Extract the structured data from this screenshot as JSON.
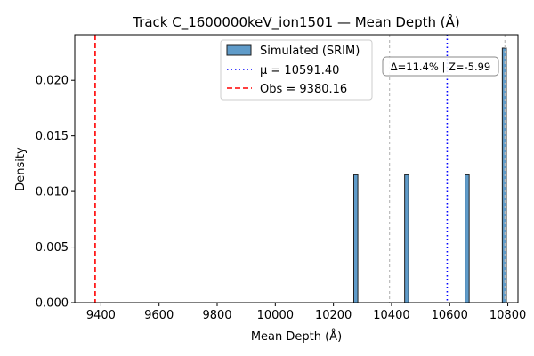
{
  "chart_data": {
    "type": "bar",
    "title": "Track C_1600000keV_ion1501 — Mean Depth (Å)",
    "xlabel": "Mean Depth (Å)",
    "ylabel": "Density",
    "xlim": [
      9310,
      10835
    ],
    "ylim": [
      0,
      0.0241
    ],
    "xticks": [
      9400,
      9600,
      9800,
      10000,
      10200,
      10400,
      10600,
      10800
    ],
    "yticks": [
      0.0,
      0.005,
      0.01,
      0.015,
      0.02
    ],
    "ytick_labels": [
      "0.000",
      "0.005",
      "0.010",
      "0.015",
      "0.020"
    ],
    "grid": false,
    "bin_width": 14,
    "bins": [
      {
        "x": 10277,
        "density": 0.0115
      },
      {
        "x": 10452,
        "density": 0.0115
      },
      {
        "x": 10660,
        "density": 0.0115
      },
      {
        "x": 10788,
        "density": 0.0229
      }
    ],
    "mean": 10591.4,
    "observed": 9380.16,
    "sigma_lines": [
      10393,
      10790
    ],
    "legend": {
      "placement": "upper center",
      "entries": [
        {
          "label": "Simulated (SRIM)",
          "kind": "patch"
        },
        {
          "label": "μ = 10591.40",
          "kind": "dotted"
        },
        {
          "label": "Obs = 9380.16",
          "kind": "dashed"
        }
      ]
    },
    "annotation": "Δ=11.4% | Z=-5.99",
    "colors": {
      "bar_fill": "#5f9bc9",
      "bar_edge": "#1f1f1f",
      "mean_line": "#0000ff",
      "obs_line": "#ff0000",
      "sigma_line": "#bbbbbb"
    }
  }
}
